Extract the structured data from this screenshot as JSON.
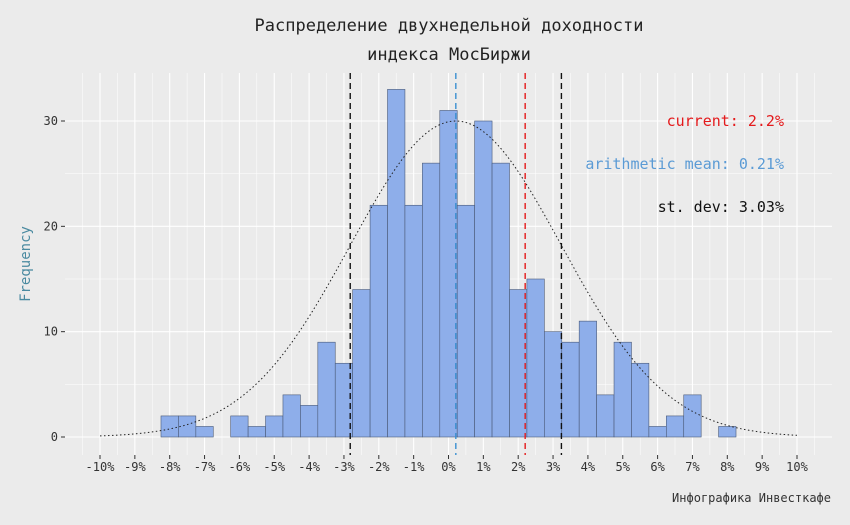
{
  "chart_data": {
    "type": "bar",
    "title_lines": [
      "Распределение двухнедельной доходности",
      "индекса МосБиржи"
    ],
    "xlabel": "",
    "ylabel": "Frequency",
    "caption": "Инфографика Инвесткафе",
    "xlim": [
      -10,
      10
    ],
    "ylim": [
      0,
      33
    ],
    "x_ticks": [
      -10,
      -9,
      -8,
      -7,
      -6,
      -5,
      -4,
      -3,
      -2,
      -1,
      0,
      1,
      2,
      3,
      4,
      5,
      6,
      7,
      8,
      9,
      10
    ],
    "x_tick_labels": [
      "-10%",
      "-9%",
      "-8%",
      "-7%",
      "-6%",
      "-5%",
      "-4%",
      "-3%",
      "-2%",
      "-1%",
      "0%",
      "1%",
      "2%",
      "3%",
      "4%",
      "5%",
      "6%",
      "7%",
      "8%",
      "9%",
      "10%"
    ],
    "y_ticks": [
      0,
      10,
      20,
      30
    ],
    "y_tick_labels": [
      "0",
      "10",
      "20",
      "30"
    ],
    "bin_width": 0.5,
    "bins": [
      {
        "start": -8.25,
        "count": 2
      },
      {
        "start": -7.75,
        "count": 2
      },
      {
        "start": -7.25,
        "count": 1
      },
      {
        "start": -6.75,
        "count": 0
      },
      {
        "start": -6.25,
        "count": 2
      },
      {
        "start": -5.75,
        "count": 1
      },
      {
        "start": -5.25,
        "count": 2
      },
      {
        "start": -4.75,
        "count": 4
      },
      {
        "start": -4.25,
        "count": 3
      },
      {
        "start": -3.75,
        "count": 9
      },
      {
        "start": -3.25,
        "count": 7
      },
      {
        "start": -2.75,
        "count": 14
      },
      {
        "start": -2.25,
        "count": 22
      },
      {
        "start": -1.75,
        "count": 33
      },
      {
        "start": -1.25,
        "count": 22
      },
      {
        "start": -0.75,
        "count": 26
      },
      {
        "start": -0.25,
        "count": 31
      },
      {
        "start": 0.25,
        "count": 22
      },
      {
        "start": 0.75,
        "count": 30
      },
      {
        "start": 1.25,
        "count": 26
      },
      {
        "start": 1.75,
        "count": 14
      },
      {
        "start": 2.25,
        "count": 15
      },
      {
        "start": 2.75,
        "count": 10
      },
      {
        "start": 3.25,
        "count": 9
      },
      {
        "start": 3.75,
        "count": 11
      },
      {
        "start": 4.25,
        "count": 4
      },
      {
        "start": 4.75,
        "count": 9
      },
      {
        "start": 5.25,
        "count": 7
      },
      {
        "start": 5.75,
        "count": 1
      },
      {
        "start": 6.25,
        "count": 2
      },
      {
        "start": 6.75,
        "count": 4
      },
      {
        "start": 7.25,
        "count": 0
      },
      {
        "start": 7.75,
        "count": 1
      }
    ],
    "normal_curve": {
      "mean": 0.21,
      "sd": 3.03,
      "peak": 30,
      "style": "dotted"
    },
    "vlines": [
      {
        "x": 0.21,
        "color": "#3a8fd0",
        "style": "dashed"
      },
      {
        "x": 2.2,
        "color": "#e41a1c",
        "style": "dashed"
      },
      {
        "x": -2.82,
        "color": "#111111",
        "style": "dashed"
      },
      {
        "x": 3.24,
        "color": "#111111",
        "style": "dashed"
      }
    ],
    "annotations": [
      {
        "text": "current: 2.2%",
        "color": "#e41a1c"
      },
      {
        "text": "arithmetic mean: 0.21%",
        "color": "#5b9bd5"
      },
      {
        "text": "st. dev: 3.03%",
        "color": "#111111"
      }
    ],
    "bar_fill": "#8eaeea",
    "bar_stroke": "#4a5a78",
    "panel_bg": "#ebebeb",
    "grid": true,
    "grid_color": "#ffffff"
  }
}
